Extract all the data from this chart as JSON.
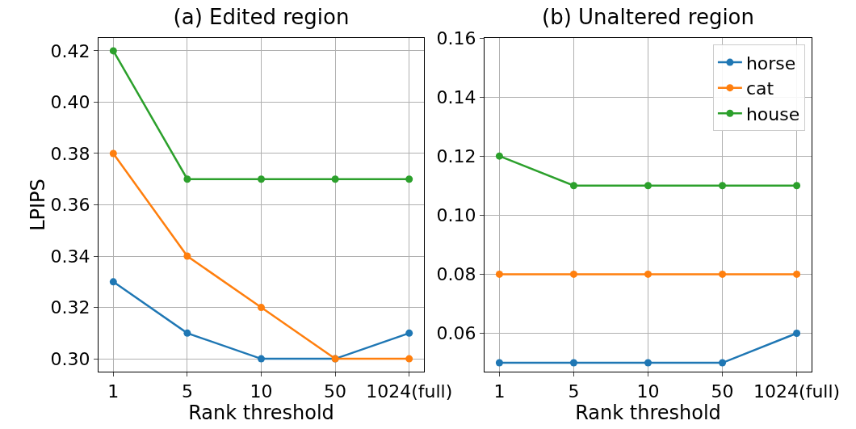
{
  "chart_data": [
    {
      "type": "line",
      "title": "(a) Edited region",
      "xlabel": "Rank threshold",
      "ylabel": "LPIPS",
      "categories": [
        "1",
        "5",
        "10",
        "50",
        "1024(full)"
      ],
      "series": [
        {
          "color": "#1f77b4",
          "values": [
            0.33,
            0.31,
            0.3,
            0.3,
            0.31
          ]
        },
        {
          "color": "#ff7f0e",
          "values": [
            0.38,
            0.34,
            0.32,
            0.3,
            0.3
          ]
        },
        {
          "color": "#2ca02c",
          "values": [
            0.42,
            0.37,
            0.37,
            0.37,
            0.37
          ]
        }
      ],
      "ylim": [
        0.295,
        0.425
      ],
      "yticks": [
        {
          "value": 0.3,
          "label": "0.30"
        },
        {
          "value": 0.32,
          "label": "0.32"
        },
        {
          "value": 0.34,
          "label": "0.34"
        },
        {
          "value": 0.36,
          "label": "0.36"
        },
        {
          "value": 0.38,
          "label": "0.38"
        },
        {
          "value": 0.4,
          "label": "0.40"
        },
        {
          "value": 0.42,
          "label": "0.42"
        }
      ],
      "grid": true,
      "marker": "circle",
      "line_style": "solid"
    },
    {
      "type": "line",
      "title": "(b) Unaltered region",
      "xlabel": "Rank threshold",
      "categories": [
        "1",
        "5",
        "10",
        "50",
        "1024(full)"
      ],
      "series": [
        {
          "name": "horse",
          "color": "#1f77b4",
          "values": [
            0.05,
            0.05,
            0.05,
            0.05,
            0.06
          ]
        },
        {
          "name": "cat",
          "color": "#ff7f0e",
          "values": [
            0.08,
            0.08,
            0.08,
            0.08,
            0.08
          ]
        },
        {
          "name": "house",
          "color": "#2ca02c",
          "values": [
            0.12,
            0.11,
            0.11,
            0.11,
            0.11
          ]
        }
      ],
      "ylim": [
        0.047,
        0.16
      ],
      "yticks": [
        {
          "value": 0.06,
          "label": "0.06"
        },
        {
          "value": 0.08,
          "label": "0.08"
        },
        {
          "value": 0.1,
          "label": "0.10"
        },
        {
          "value": 0.12,
          "label": "0.12"
        },
        {
          "value": 0.14,
          "label": "0.14"
        },
        {
          "value": 0.16,
          "label": "0.16"
        }
      ],
      "grid": true,
      "marker": "circle",
      "line_style": "solid",
      "legend": "top right"
    }
  ]
}
